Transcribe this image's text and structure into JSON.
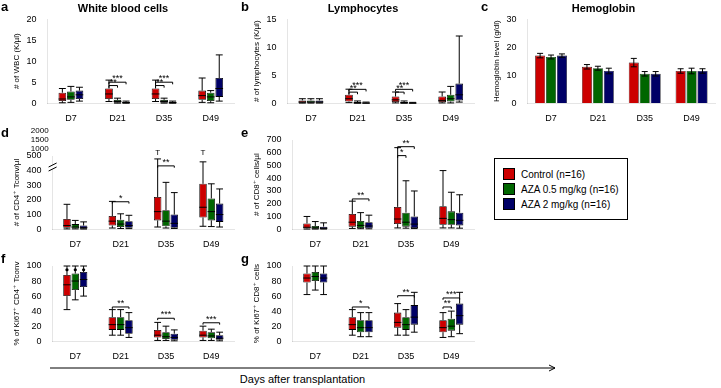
{
  "chart_data": [
    {
      "type": "box",
      "panel": "a",
      "title": "White blood cells",
      "ylabel": "# of WBC (K/µl)",
      "categories": [
        "D7",
        "D21",
        "D35",
        "D49"
      ],
      "series": [
        {
          "name": "Control (n=16)",
          "color": "#CC0000",
          "q1": [
            0.5,
            1.0,
            1.0,
            0.8
          ],
          "median": [
            1.0,
            2.2,
            2.2,
            1.8
          ],
          "q3": [
            2.5,
            3.5,
            3.5,
            3.0
          ],
          "whisker_low": [
            0.1,
            0.4,
            0.4,
            0.2
          ],
          "whisker_high": [
            3.5,
            5.5,
            5.5,
            6.0
          ]
        },
        {
          "name": "AZA 0.5 mg/kg (n=16)",
          "color": "#006600",
          "q1": [
            0.8,
            0.1,
            0.1,
            0.5
          ],
          "median": [
            1.5,
            0.4,
            0.4,
            1.5
          ],
          "q3": [
            2.8,
            0.8,
            0.8,
            2.5
          ],
          "whisker_low": [
            0.2,
            0.02,
            0.02,
            0.1
          ],
          "whisker_high": [
            4.0,
            1.2,
            1.2,
            3.0
          ]
        },
        {
          "name": "AZA 2 mg/kg (n=16)",
          "color": "#000066",
          "q1": [
            1.0,
            0.05,
            0.05,
            1.5
          ],
          "median": [
            2.0,
            0.1,
            0.1,
            3.5
          ],
          "q3": [
            3.0,
            0.3,
            0.3,
            6.0
          ],
          "whisker_low": [
            0.5,
            0.01,
            0.01,
            0.5
          ],
          "whisker_high": [
            3.8,
            0.5,
            0.5,
            11.5
          ]
        }
      ],
      "ylim": [
        0,
        20
      ],
      "yticks": [
        0,
        5,
        10,
        15,
        20
      ],
      "grid": false,
      "annotations": [
        {
          "text": "**",
          "category": "D21",
          "between": [
            "Control (n=16)",
            "AZA 0.5 mg/kg (n=16)"
          ],
          "y": 3.7
        },
        {
          "text": "***",
          "category": "D21",
          "between": [
            "Control (n=16)",
            "AZA 2 mg/kg (n=16)"
          ],
          "y": 4.5
        },
        {
          "text": "**",
          "category": "D35",
          "between": [
            "Control (n=16)",
            "AZA 0.5 mg/kg (n=16)"
          ],
          "y": 3.7
        },
        {
          "text": "***",
          "category": "D35",
          "between": [
            "Control (n=16)",
            "AZA 2 mg/kg (n=16)"
          ],
          "y": 4.5
        }
      ]
    },
    {
      "type": "box",
      "panel": "b",
      "title": "Lymphocytes",
      "ylabel": "# of lymphocytes (K/µl)",
      "categories": [
        "D7",
        "D21",
        "D35",
        "D49"
      ],
      "series": [
        {
          "name": "Control (n=16)",
          "color": "#CC0000",
          "q1": [
            0.1,
            0.3,
            0.2,
            0.2
          ],
          "median": [
            0.2,
            0.8,
            0.6,
            0.5
          ],
          "q3": [
            0.5,
            1.5,
            1.2,
            1.2
          ],
          "whisker_low": [
            0.02,
            0.1,
            0.05,
            0.05
          ],
          "whisker_high": [
            0.8,
            2.5,
            2.0,
            2.0
          ]
        },
        {
          "name": "AZA 0.5 mg/kg (n=16)",
          "color": "#006600",
          "q1": [
            0.1,
            0.02,
            0.02,
            0.3
          ],
          "median": [
            0.2,
            0.05,
            0.05,
            0.8
          ],
          "q3": [
            0.5,
            0.2,
            0.2,
            1.5
          ],
          "whisker_low": [
            0.02,
            0.005,
            0.005,
            0.05
          ],
          "whisker_high": [
            0.8,
            0.4,
            0.4,
            3.0
          ]
        },
        {
          "name": "AZA 2 mg/kg (n=16)",
          "color": "#000066",
          "q1": [
            0.1,
            0.005,
            0.005,
            0.5
          ],
          "median": [
            0.2,
            0.02,
            0.02,
            1.5
          ],
          "q3": [
            0.5,
            0.1,
            0.08,
            3.5
          ],
          "whisker_low": [
            0.02,
            0.002,
            0.002,
            0.2
          ],
          "whisker_high": [
            0.8,
            0.2,
            0.15,
            12.0
          ]
        }
      ],
      "ylim": [
        0,
        15
      ],
      "yticks": [
        0,
        5,
        10,
        15
      ],
      "grid": false,
      "annotations": [
        {
          "text": "**",
          "category": "D21",
          "between": [
            "Control (n=16)",
            "AZA 0.5 mg/kg (n=16)"
          ],
          "y": 1.6
        },
        {
          "text": "***",
          "category": "D21",
          "between": [
            "Control (n=16)",
            "AZA 2 mg/kg (n=16)"
          ],
          "y": 2.1
        },
        {
          "text": "**",
          "category": "D35",
          "between": [
            "Control (n=16)",
            "AZA 0.5 mg/kg (n=16)"
          ],
          "y": 1.6
        },
        {
          "text": "***",
          "category": "D35",
          "between": [
            "Control (n=16)",
            "AZA 2 mg/kg (n=16)"
          ],
          "y": 2.1
        }
      ]
    },
    {
      "type": "bar",
      "panel": "c",
      "title": "Hemoglobin",
      "ylabel": "Hemoglobin level (g/dl)",
      "categories": [
        "D7",
        "D21",
        "D35",
        "D49"
      ],
      "series": [
        {
          "name": "Control (n=16)",
          "color": "#CC0000",
          "values": [
            17.0,
            13.0,
            14.5,
            11.5
          ],
          "errors": [
            0.8,
            0.8,
            1.5,
            0.8
          ]
        },
        {
          "name": "AZA 0.5 mg/kg (n=16)",
          "color": "#006600",
          "values": [
            16.5,
            12.5,
            10.5,
            11.5
          ],
          "errors": [
            0.7,
            0.7,
            0.8,
            1.0
          ]
        },
        {
          "name": "AZA 2 mg/kg (n=16)",
          "color": "#000066",
          "values": [
            17.0,
            11.5,
            10.5,
            11.5
          ],
          "errors": [
            0.6,
            1.0,
            0.8,
            0.8
          ]
        }
      ],
      "ylim": [
        0,
        30
      ],
      "yticks": [
        0,
        10,
        20,
        30
      ],
      "grid": false
    },
    {
      "type": "box",
      "panel": "d",
      "ylabel": "# of CD4⁺ Tconv/µl",
      "categories": [
        "D7",
        "D21",
        "D35",
        "D49"
      ],
      "series": [
        {
          "name": "Control (n=16)",
          "color": "#CC0000",
          "q1": [
            10,
            25,
            60,
            80
          ],
          "median": [
            25,
            55,
            120,
            150
          ],
          "q3": [
            70,
            90,
            220,
            310
          ],
          "whisker_low": [
            2,
            8,
            15,
            20
          ],
          "whisker_high": [
            170,
            190,
            480,
            460
          ]
        },
        {
          "name": "AZA 0.5 mg/kg (n=16)",
          "color": "#006600",
          "q1": [
            5,
            15,
            20,
            60
          ],
          "median": [
            15,
            35,
            55,
            120
          ],
          "q3": [
            35,
            65,
            130,
            210
          ],
          "whisker_low": [
            2,
            5,
            8,
            18
          ],
          "whisker_high": [
            60,
            105,
            320,
            310
          ]
        },
        {
          "name": "AZA 2 mg/kg (n=16)",
          "color": "#000066",
          "q1": [
            3,
            10,
            10,
            50
          ],
          "median": [
            10,
            25,
            40,
            100
          ],
          "q3": [
            25,
            55,
            100,
            175
          ],
          "whisker_low": [
            1,
            4,
            5,
            15
          ],
          "whisker_high": [
            50,
            95,
            250,
            275
          ]
        }
      ],
      "ylim": [
        0,
        500
      ],
      "yticks": [
        0,
        100,
        200,
        300,
        400,
        500
      ],
      "grid": false,
      "annotations": [
        {
          "text": "2000"
        },
        {
          "text": "1500"
        },
        {
          "text": "1000"
        },
        {
          "text": "*",
          "category": "D21",
          "between": [
            "Control (n=16)",
            "AZA 2 mg/kg (n=16)"
          ],
          "y": 175
        },
        {
          "text": "**",
          "category": "D35",
          "between": [
            "Control (n=16)",
            "AZA 2 mg/kg (n=16)"
          ],
          "y": 420
        },
        {
          "text": "T",
          "category": "D35",
          "series": "Control (n=16)",
          "y": 497
        },
        {
          "text": "T",
          "category": "D49",
          "series": "Control (n=16)",
          "y": 497
        }
      ]
    },
    {
      "type": "box",
      "panel": "e",
      "ylabel": "# of CD8⁺ cells/µl",
      "categories": [
        "D7",
        "D21",
        "D35",
        "D49"
      ],
      "series": [
        {
          "name": "Control (n=16)",
          "color": "#CC0000",
          "q1": [
            5,
            20,
            40,
            35
          ],
          "median": [
            15,
            55,
            80,
            85
          ],
          "q3": [
            45,
            120,
            175,
            180
          ],
          "whisker_low": [
            1,
            6,
            10,
            10
          ],
          "whisker_high": [
            100,
            220,
            640,
            460
          ]
        },
        {
          "name": "AZA 0.5 mg/kg (n=16)",
          "color": "#006600",
          "q1": [
            3,
            10,
            20,
            35
          ],
          "median": [
            10,
            30,
            55,
            75
          ],
          "q3": [
            25,
            65,
            130,
            140
          ],
          "whisker_low": [
            1,
            4,
            8,
            10
          ],
          "whisker_high": [
            60,
            130,
            380,
            290
          ]
        },
        {
          "name": "AZA 2 mg/kg (n=16)",
          "color": "#000066",
          "q1": [
            2,
            8,
            10,
            30
          ],
          "median": [
            8,
            25,
            40,
            70
          ],
          "q3": [
            20,
            55,
            100,
            130
          ],
          "whisker_low": [
            1,
            3,
            5,
            8
          ],
          "whisker_high": [
            50,
            110,
            300,
            270
          ]
        }
      ],
      "ylim": [
        0,
        700
      ],
      "yticks": [
        0,
        100,
        200,
        300,
        400,
        500,
        600,
        700
      ],
      "grid": false,
      "legend": "right",
      "annotations": [
        {
          "text": "**",
          "category": "D21",
          "between": [
            "Control (n=16)",
            "AZA 2 mg/kg (n=16)"
          ],
          "y": 220
        },
        {
          "text": "*",
          "category": "D35",
          "between": [
            "Control (n=16)",
            "AZA 0.5 mg/kg (n=16)"
          ],
          "y": 560
        },
        {
          "text": "**",
          "category": "D35",
          "between": [
            "Control (n=16)",
            "AZA 2 mg/kg (n=16)"
          ],
          "y": 630
        }
      ]
    },
    {
      "type": "box",
      "panel": "f",
      "ylabel": "% of Ki67⁺ CD4⁺ Tconv",
      "xlabel": "Days after transplantation",
      "categories": [
        "D7",
        "D21",
        "D35",
        "D49"
      ],
      "series": [
        {
          "name": "Control (n=16)",
          "color": "#CC0000",
          "q1": [
            60,
            15,
            5,
            5
          ],
          "median": [
            75,
            22,
            8,
            8
          ],
          "q3": [
            88,
            32,
            15,
            14
          ],
          "whisker_low": [
            42,
            8,
            1,
            1
          ],
          "whisker_high": [
            100,
            42,
            25,
            20
          ],
          "outliers": [
            95,
            null,
            null,
            null
          ]
        },
        {
          "name": "AZA 0.5 mg/kg (n=16)",
          "color": "#006600",
          "q1": [
            68,
            15,
            3,
            4
          ],
          "median": [
            80,
            22,
            6,
            7
          ],
          "q3": [
            90,
            32,
            12,
            12
          ],
          "whisker_low": [
            55,
            8,
            1,
            1
          ],
          "whisker_high": [
            100,
            42,
            20,
            16
          ],
          "outliers": [
            95,
            null,
            null,
            null
          ]
        },
        {
          "name": "AZA 2 mg/kg (n=16)",
          "color": "#000066",
          "q1": [
            72,
            10,
            2,
            2
          ],
          "median": [
            82,
            18,
            5,
            4
          ],
          "q3": [
            92,
            28,
            10,
            8
          ],
          "whisker_low": [
            60,
            5,
            0.5,
            0.5
          ],
          "whisker_high": [
            100,
            38,
            15,
            12
          ],
          "outliers": [
            95,
            null,
            null,
            null
          ]
        }
      ],
      "ylim": [
        0,
        100
      ],
      "yticks": [
        0,
        20,
        40,
        60,
        80,
        100
      ],
      "grid": false,
      "annotations": [
        {
          "text": "**",
          "category": "D21",
          "between": [
            "Control (n=16)",
            "AZA 2 mg/kg (n=16)"
          ],
          "y": 43
        },
        {
          "text": "***",
          "category": "D35",
          "between": [
            "Control (n=16)",
            "AZA 2 mg/kg (n=16)"
          ],
          "y": 28
        },
        {
          "text": "***",
          "category": "D49",
          "between": [
            "Control (n=16)",
            "AZA 2 mg/kg (n=16)"
          ],
          "y": 22
        }
      ]
    },
    {
      "type": "box",
      "panel": "g",
      "ylabel": "% of Ki67⁺ CD8⁺ cells",
      "categories": [
        "D7",
        "D21",
        "D35",
        "D49"
      ],
      "series": [
        {
          "name": "Control (n=16)",
          "color": "#CC0000",
          "q1": [
            78,
            15,
            18,
            12
          ],
          "median": [
            84,
            22,
            25,
            18
          ],
          "q3": [
            90,
            32,
            38,
            28
          ],
          "whisker_low": [
            62,
            8,
            8,
            5
          ],
          "whisker_high": [
            100,
            42,
            50,
            38
          ]
        },
        {
          "name": "AZA 0.5 mg/kg (n=16)",
          "color": "#006600",
          "q1": [
            80,
            12,
            15,
            14
          ],
          "median": [
            86,
            18,
            22,
            20
          ],
          "q3": [
            92,
            28,
            32,
            30
          ],
          "whisker_low": [
            68,
            6,
            8,
            6
          ],
          "whisker_high": [
            100,
            38,
            42,
            40
          ]
        },
        {
          "name": "AZA 2 mg/kg (n=16)",
          "color": "#000066",
          "q1": [
            78,
            12,
            22,
            22
          ],
          "median": [
            84,
            18,
            32,
            34
          ],
          "q3": [
            90,
            28,
            48,
            50
          ],
          "whisker_low": [
            62,
            6,
            12,
            10
          ],
          "whisker_high": [
            100,
            38,
            65,
            65
          ]
        }
      ],
      "ylim": [
        0,
        100
      ],
      "yticks": [
        0,
        20,
        40,
        60,
        80,
        100
      ],
      "grid": false,
      "annotations": [
        {
          "text": "*",
          "category": "D21",
          "between": [
            "Control (n=16)",
            "AZA 2 mg/kg (n=16)"
          ],
          "y": 43
        },
        {
          "text": "**",
          "category": "D35",
          "between": [
            "Control (n=16)",
            "AZA 2 mg/kg (n=16)"
          ],
          "y": 58
        },
        {
          "text": "**",
          "category": "D49",
          "between": [
            "Control (n=16)",
            "AZA 0.5 mg/kg (n=16)"
          ],
          "y": 43
        },
        {
          "text": "***",
          "category": "D49",
          "between": [
            "Control (n=16)",
            "AZA 2 mg/kg (n=16)"
          ],
          "y": 55
        }
      ]
    }
  ]
}
